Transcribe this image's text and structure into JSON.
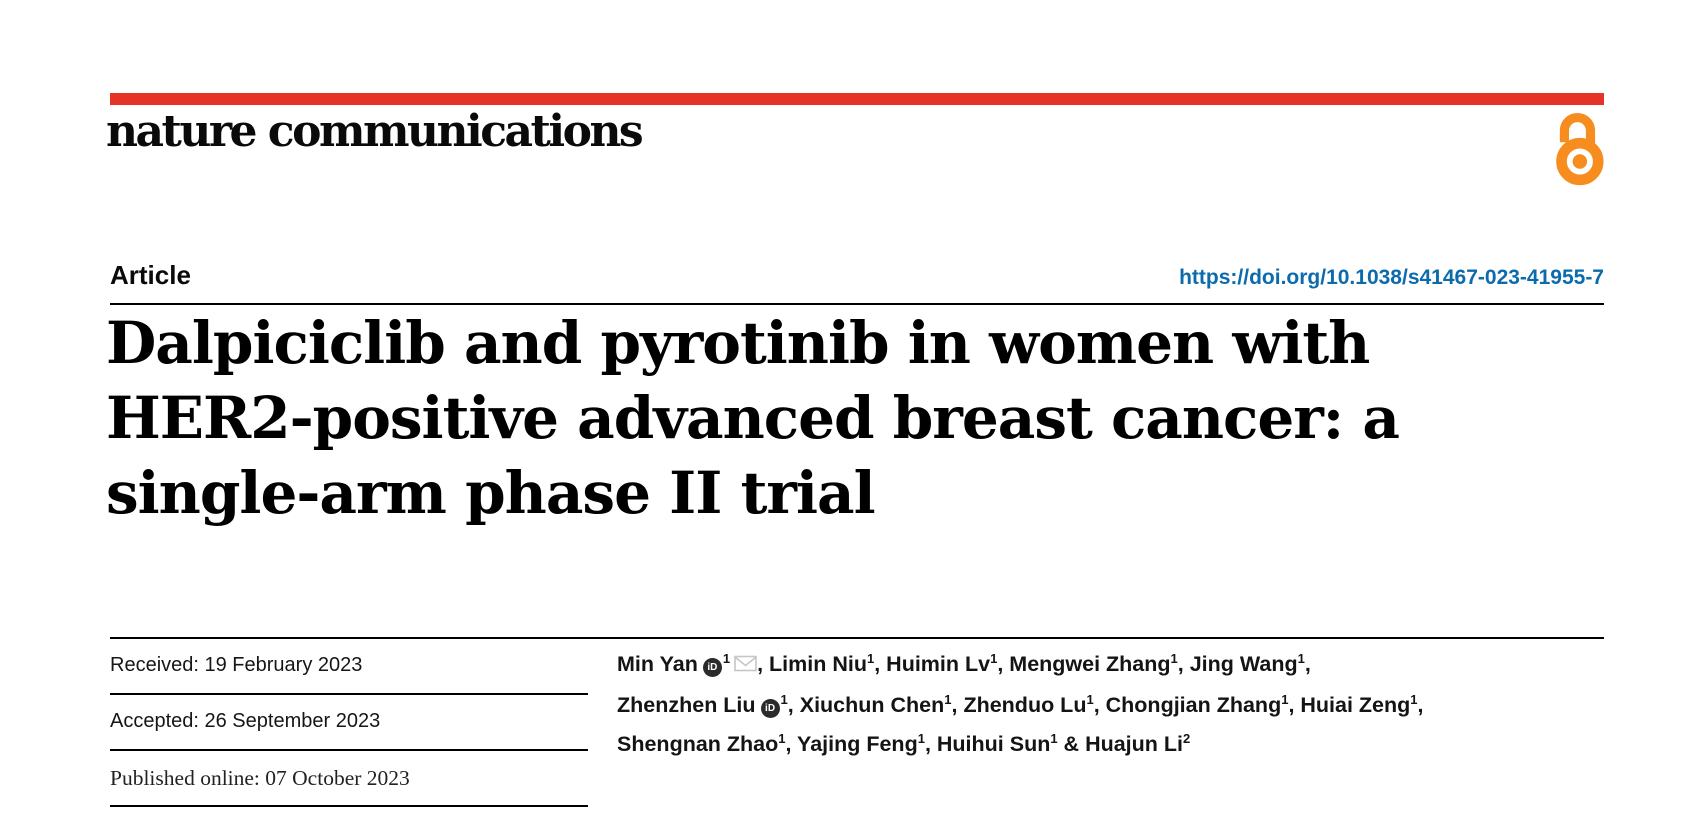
{
  "brand": {
    "journal_name": "nature communications",
    "open_access_icon": "open-access-padlock-icon"
  },
  "header": {
    "article_type": "Article",
    "doi_link": "https://doi.org/10.1038/s41467-023-41955-7"
  },
  "title": {
    "lines": [
      "Dalpiciclib and pyrotinib in women with",
      "HER2-positive advanced breast cancer: a",
      "single-arm phase II trial"
    ]
  },
  "dates": {
    "rows": [
      {
        "text": "Received: 19 February 2023",
        "style": "sans"
      },
      {
        "text": "Accepted: 26 September 2023",
        "style": "sans"
      },
      {
        "text": "Published online: 07 October 2023",
        "style": "serif"
      }
    ]
  },
  "authors": {
    "orcid_icon_label": "iD",
    "list": [
      {
        "name": "Min Yan",
        "orcid": true,
        "sup": "1",
        "email": true,
        "sep": ", "
      },
      {
        "name": "Limin Niu",
        "sup": "1",
        "sep": ", "
      },
      {
        "name": "Huimin Lv",
        "sup": "1",
        "sep": ", "
      },
      {
        "name": "Mengwei Zhang",
        "sup": "1",
        "sep": ", "
      },
      {
        "name": "Jing Wang",
        "sup": "1",
        "sep": ",",
        "br": true
      },
      {
        "name": "Zhenzhen Liu",
        "orcid": true,
        "sup": "1",
        "sep": ", "
      },
      {
        "name": "Xiuchun Chen",
        "sup": "1",
        "sep": ", "
      },
      {
        "name": "Zhenduo Lu",
        "sup": "1",
        "sep": ", "
      },
      {
        "name": "Chongjian Zhang",
        "sup": "1",
        "sep": ", "
      },
      {
        "name": "Huiai Zeng",
        "sup": "1",
        "sep": ",",
        "br": true
      },
      {
        "name": "Shengnan Zhao",
        "sup": "1",
        "sep": ", "
      },
      {
        "name": "Yajing Feng",
        "sup": "1",
        "sep": ", "
      },
      {
        "name": "Huihui Sun",
        "sup": "1",
        "sep": " & "
      },
      {
        "name": "Huajun Li",
        "sup": "2",
        "sep": ""
      }
    ]
  },
  "colors": {
    "nature_red": "#e63327",
    "open_access_orange": "#f68d1e",
    "link_blue": "#0b6bad",
    "orcid_icon_bg": "#2b2b2b",
    "envelope_gray": "#c6c6c6",
    "rule_black": "#000000"
  }
}
